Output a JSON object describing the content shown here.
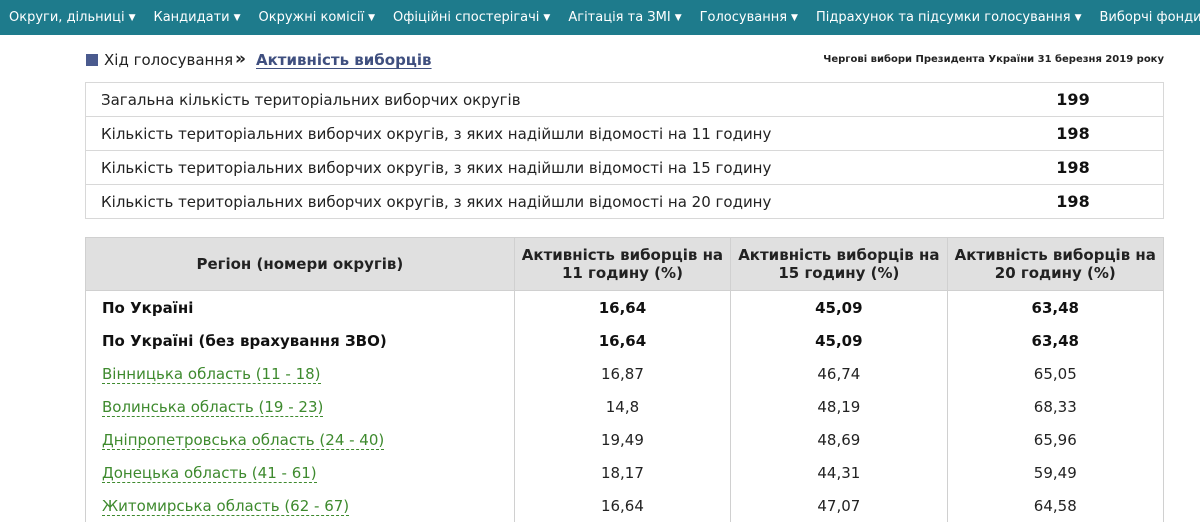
{
  "nav": [
    {
      "label": "Округи, дільниці"
    },
    {
      "label": "Кандидати"
    },
    {
      "label": "Окружні комісії"
    },
    {
      "label": "Офіційні спостерігачі"
    },
    {
      "label": "Агітація та ЗМІ"
    },
    {
      "label": "Голосування"
    },
    {
      "label": "Підрахунок та підсумки голосування"
    },
    {
      "label": "Виборчі фонди"
    }
  ],
  "breadcrumb": {
    "prev": "Хід голосування",
    "separator": "»",
    "current": "Активність виборців"
  },
  "election_title": "Чергові вибори Президента України 31 березня 2019 року",
  "summary": [
    {
      "label": "Загальна кількість територіальних виборчих округів",
      "value": "199"
    },
    {
      "label": "Кількість територіальних виборчих округів, з яких надійшли відомості на 11 годину",
      "value": "198"
    },
    {
      "label": "Кількість територіальних виборчих округів, з яких надійшли відомості на 15 годину",
      "value": "198"
    },
    {
      "label": "Кількість територіальних виборчих округів, з яких надійшли відомості на 20 годину",
      "value": "198"
    }
  ],
  "turnout": {
    "headers": [
      "Регіон (номери округів)",
      "Активність виборців на 11 годину (%)",
      "Активність виборців на 15 годину (%)",
      "Активність виборців на 20 годину (%)"
    ],
    "rows": [
      {
        "region": "По Україні",
        "v11": "16,64",
        "v15": "45,09",
        "v20": "63,48"
      },
      {
        "region": "По Україні (без врахування ЗВО)",
        "v11": "16,64",
        "v15": "45,09",
        "v20": "63,48"
      },
      {
        "region": "Вінницька область (11 - 18)",
        "v11": "16,87",
        "v15": "46,74",
        "v20": "65,05"
      },
      {
        "region": "Волинська область (19 - 23)",
        "v11": "14,8",
        "v15": "48,19",
        "v20": "68,33"
      },
      {
        "region": "Дніпропетровська область (24 - 40)",
        "v11": "19,49",
        "v15": "48,69",
        "v20": "65,96"
      },
      {
        "region": "Донецька область (41 - 61)",
        "v11": "18,17",
        "v15": "44,31",
        "v20": "59,49"
      },
      {
        "region": "Житомирська область (62 - 67)",
        "v11": "16,64",
        "v15": "47,07",
        "v20": "64,58"
      }
    ]
  },
  "colors": {
    "nav_bg": "#1e7b8c",
    "link_green": "#3e8a2e",
    "breadcrumb_current": "#3f4f7f",
    "header_bg": "#e0e0e0"
  }
}
